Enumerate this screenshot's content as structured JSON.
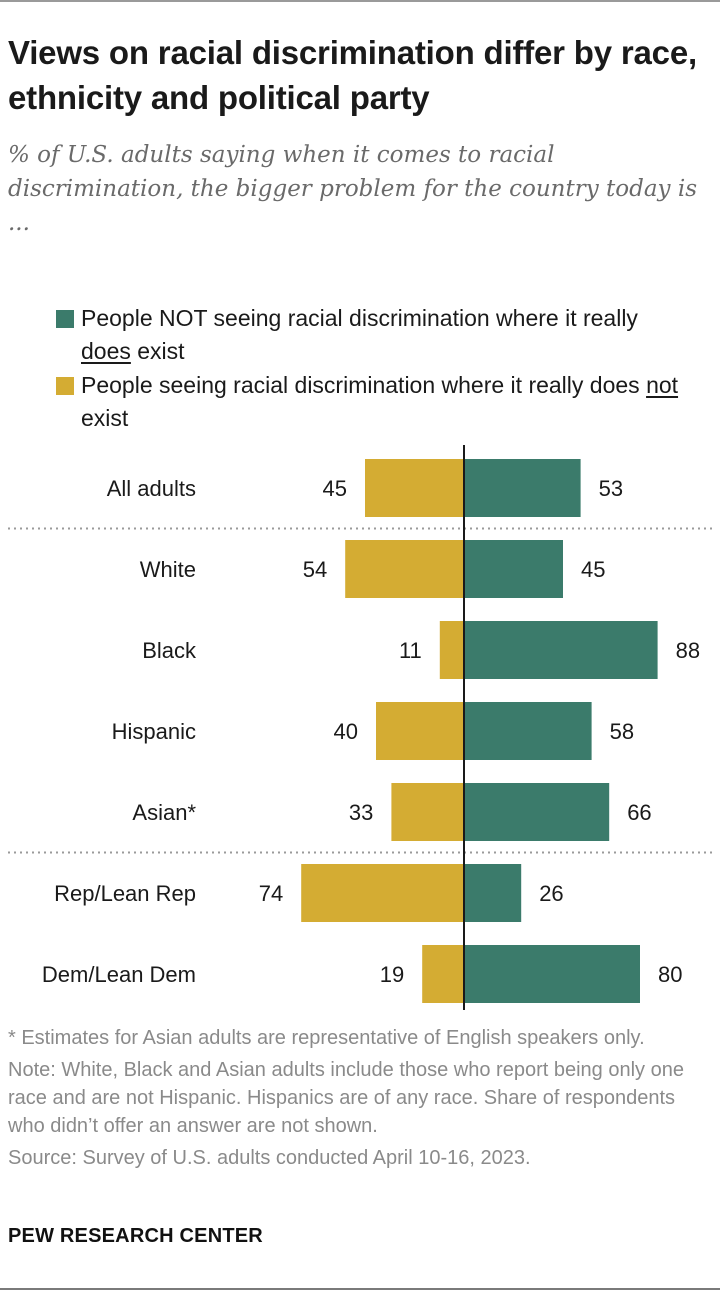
{
  "title": "Views on racial discrimination differ by race, ethnicity and political party",
  "subtitle": "% of U.S. adults saying when it comes to racial discrimination, the bigger problem for the country today is ...",
  "legend": [
    {
      "color": "#3b7b6b",
      "before": "People NOT seeing racial discrimination where it really ",
      "emph": "does",
      "after": " exist"
    },
    {
      "color": "#d4ac33",
      "before": "People seeing racial discrimination where it really does ",
      "emph": "not",
      "after": " exist"
    }
  ],
  "chart_data": {
    "type": "bar",
    "orientation": "diverging-horizontal",
    "categories": [
      "All adults",
      "White",
      "Black",
      "Hispanic",
      "Asian*",
      "Rep/Lean Rep",
      "Dem/Lean Dem"
    ],
    "groups_break_after": [
      0,
      4
    ],
    "series": [
      {
        "name": "People seeing racial discrimination where it really does not exist",
        "color": "#d4ac33",
        "side": "left",
        "values": [
          45,
          54,
          11,
          40,
          33,
          74,
          19
        ]
      },
      {
        "name": "People NOT seeing racial discrimination where it really does exist",
        "color": "#3b7b6b",
        "side": "right",
        "values": [
          53,
          45,
          88,
          58,
          66,
          26,
          80
        ]
      }
    ],
    "xlim": [
      0,
      100
    ]
  },
  "notes": {
    "asterisk": "* Estimates for Asian adults are representative of English speakers only.",
    "note": "Note: White, Black and Asian adults include those who report being only one race and are not Hispanic. Hispanics are of any race. Share of respondents who didn’t offer an answer are not shown.",
    "source": "Source: Survey of U.S. adults conducted April 10-16, 2023."
  },
  "branding": "PEW RESEARCH CENTER"
}
